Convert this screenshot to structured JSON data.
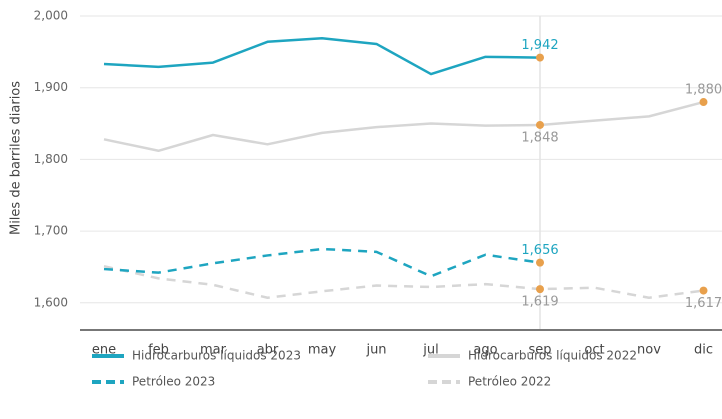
{
  "chart_data": {
    "type": "line",
    "ylabel": "Miles de barriles diarios",
    "categories": [
      "ene",
      "feb",
      "mar",
      "abr",
      "may",
      "jun",
      "jul",
      "ago",
      "sep",
      "oct",
      "nov",
      "dic"
    ],
    "series": [
      {
        "name": "Hidrocarburos líquidos 2023",
        "color": "#1ea5c0",
        "dash": false,
        "values": [
          1933,
          1929,
          1935,
          1964,
          1969,
          1961,
          1919,
          1943,
          1942,
          null,
          null,
          null
        ],
        "value_labels": [
          null,
          null,
          null,
          null,
          null,
          null,
          null,
          null,
          "1,942",
          null,
          null,
          null
        ]
      },
      {
        "name": "Hidrocarburos líquidos 2022",
        "color": "#d6d6d6",
        "dash": false,
        "values": [
          1828,
          1812,
          1834,
          1821,
          1837,
          1845,
          1850,
          1847,
          1848,
          1854,
          1860,
          1880
        ],
        "value_labels": [
          null,
          null,
          null,
          null,
          null,
          null,
          null,
          null,
          "1,848",
          null,
          null,
          "1,880"
        ]
      },
      {
        "name": "Petróleo 2023",
        "color": "#1ea5c0",
        "dash": true,
        "values": [
          1647,
          1642,
          1655,
          1666,
          1675,
          1671,
          1637,
          1667,
          1656,
          null,
          null,
          null
        ],
        "value_labels": [
          null,
          null,
          null,
          null,
          null,
          null,
          null,
          null,
          "1,656",
          null,
          null,
          null
        ]
      },
      {
        "name": "Petróleo 2022",
        "color": "#d6d6d6",
        "dash": true,
        "values": [
          1651,
          1634,
          1625,
          1607,
          1616,
          1624,
          1622,
          1626,
          1619,
          1621,
          1607,
          1617
        ],
        "value_labels": [
          null,
          null,
          null,
          null,
          null,
          null,
          null,
          null,
          "1,619",
          null,
          null,
          "1,617"
        ]
      }
    ],
    "marker_color": "#e8a04c",
    "ylim": [
      1562,
      2000
    ],
    "yticks": [
      {
        "value": 1600,
        "label": "1,600"
      },
      {
        "value": 1700,
        "label": "1,700"
      },
      {
        "value": 1800,
        "label": "1,800"
      },
      {
        "value": 1900,
        "label": "1,900"
      },
      {
        "value": 2000,
        "label": "2,000"
      }
    ],
    "grid": true
  }
}
